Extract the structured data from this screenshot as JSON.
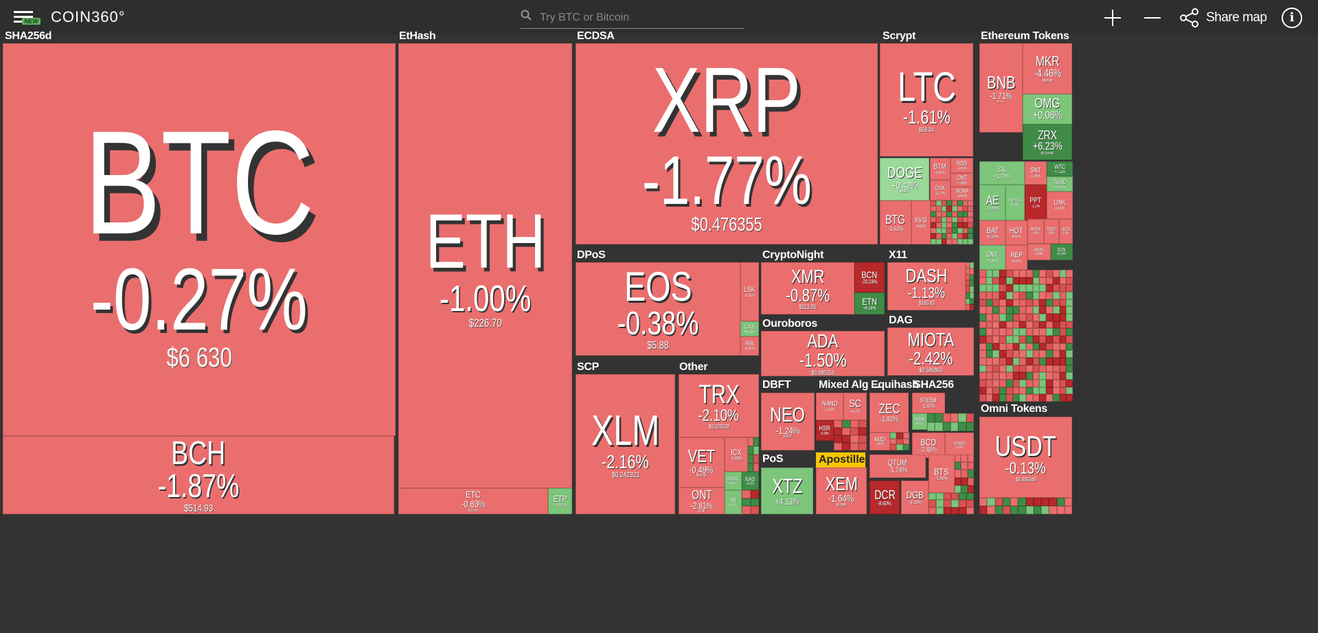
{
  "app": {
    "logo_text": "COIN360°",
    "new_badge": "NEW"
  },
  "search": {
    "placeholder": "Try BTC or Bitcoin"
  },
  "toolbar": {
    "share_label": "Share map",
    "info_glyph": "i"
  },
  "colors": {
    "down": "#ea6e6e",
    "down_dark": "#b8282a",
    "up": "#7cc57a",
    "up_dark": "#3f8c47",
    "neutral_up": "#9ad99a",
    "bg": "#333333",
    "label_highlight": "#f7c600"
  },
  "groups": [
    {
      "label": "SHA256d"
    },
    {
      "label": "EtHash"
    },
    {
      "label": "ECDSA"
    },
    {
      "label": "Scrypt"
    },
    {
      "label": "Ethereum Tokens"
    },
    {
      "label": "DPoS"
    },
    {
      "label": "CryptoNight"
    },
    {
      "label": "X11"
    },
    {
      "label": "Ouroboros"
    },
    {
      "label": "DAG"
    },
    {
      "label": "SCP"
    },
    {
      "label": "Other"
    },
    {
      "label": "DBFT"
    },
    {
      "label": "Mixed Alg ..."
    },
    {
      "label": "Equihash"
    },
    {
      "label": "SHA256"
    },
    {
      "label": "PoS"
    },
    {
      "label": "Apostille"
    },
    {
      "label": "Omni Tokens"
    }
  ],
  "coins": [
    {
      "symbol": "BTC",
      "change": "-0.27%",
      "price": "$6 630"
    },
    {
      "symbol": "BCH",
      "change": "-1.87%",
      "price": "$514.93"
    },
    {
      "symbol": "ETH",
      "change": "-1.00%",
      "price": "$226.70"
    },
    {
      "symbol": "ETC",
      "change": "-0.63%",
      "price": "$10.81"
    },
    {
      "symbol": "ETP",
      "change": "+0.17%",
      "price": ""
    },
    {
      "symbol": "XRP",
      "change": "-1.77%",
      "price": "$0.476355"
    },
    {
      "symbol": "LTC",
      "change": "-1.61%",
      "price": "$58.34"
    },
    {
      "symbol": "DOGE",
      "change": "+0.42%",
      "price": "$0.005"
    },
    {
      "symbol": "BTM",
      "change": "-0.86%",
      "price": ""
    },
    {
      "symbol": "RDD",
      "change": "-2.60%",
      "price": ""
    },
    {
      "symbol": "CMT",
      "change": "-7.38%",
      "price": ""
    },
    {
      "symbol": "CHX",
      "change": "-2.17%",
      "price": ""
    },
    {
      "symbol": "MONA",
      "change": "-1.60%",
      "price": ""
    },
    {
      "symbol": "BTG",
      "change": "-3.63%",
      "price": ""
    },
    {
      "symbol": "XVG",
      "change": "-4.62%",
      "price": ""
    },
    {
      "symbol": "EOS",
      "change": "-0.38%",
      "price": "$5.88"
    },
    {
      "symbol": "LSK",
      "change": "-0.25%",
      "price": ""
    },
    {
      "symbol": "GXS",
      "change": "+4.51%",
      "price": ""
    },
    {
      "symbol": "ARK",
      "change": "-1.30%",
      "price": ""
    },
    {
      "symbol": "XMR",
      "change": "-0.87%",
      "price": "$113.05"
    },
    {
      "symbol": "BCN",
      "change": "-20.24%",
      "price": ""
    },
    {
      "symbol": "ETN",
      "change": "+6.18%",
      "price": ""
    },
    {
      "symbol": "DASH",
      "change": "-1.13%",
      "price": "$180.83"
    },
    {
      "symbol": "ADA",
      "change": "-1.50%",
      "price": "$0.085316"
    },
    {
      "symbol": "MIOTA",
      "change": "-2.42%",
      "price": "$0.586863"
    },
    {
      "symbol": "XLM",
      "change": "-2.16%",
      "price": "$0.242321"
    },
    {
      "symbol": "TRX",
      "change": "-2.10%",
      "price": "$0.025528"
    },
    {
      "symbol": "VET",
      "change": "-0.49%",
      "price": "$0.0169"
    },
    {
      "symbol": "ICX",
      "change": "-0.86%",
      "price": ""
    },
    {
      "symbol": "ONT",
      "change": "-2.81%",
      "price": "$1.98"
    },
    {
      "symbol": "MOAC",
      "change": "+4.0%",
      "price": ""
    },
    {
      "symbol": "NAS",
      "change": "+5.3%",
      "price": ""
    },
    {
      "symbol": "HT",
      "change": "+2.1%",
      "price": ""
    },
    {
      "symbol": "NEO",
      "change": "-1.24%",
      "price": "$18.20"
    },
    {
      "symbol": "NANO",
      "change": "-2.19%",
      "price": ""
    },
    {
      "symbol": "SC",
      "change": "-4.07%",
      "price": ""
    },
    {
      "symbol": "HSR",
      "change": "-8.28%",
      "price": ""
    },
    {
      "symbol": "ZEC",
      "change": "-1.82%",
      "price": ""
    },
    {
      "symbol": "KMD",
      "change": "-1.46%",
      "price": ""
    },
    {
      "symbol": "STEEM",
      "change": "-1.47%",
      "price": ""
    },
    {
      "symbol": "ARDR",
      "change": "+0.6%",
      "price": ""
    },
    {
      "symbol": "BCD",
      "change": "-2.45%",
      "price": ""
    },
    {
      "symbol": "STRAT",
      "change": "-3.26%",
      "price": ""
    },
    {
      "symbol": "XTZ",
      "change": "+4.13%",
      "price": ""
    },
    {
      "symbol": "QTUM",
      "change": "-1.74%",
      "price": ""
    },
    {
      "symbol": "BTS",
      "change": "-1.98%",
      "price": ""
    },
    {
      "symbol": "XEM",
      "change": "-1.64%",
      "price": "$0.0968"
    },
    {
      "symbol": "DCR",
      "change": "-8.60%",
      "price": ""
    },
    {
      "symbol": "DGB",
      "change": "-3.16%",
      "price": ""
    },
    {
      "symbol": "BNB",
      "change": "-1.71%",
      "price": "$10.31"
    },
    {
      "symbol": "MKR",
      "change": "-4.46%",
      "price": "$500.38"
    },
    {
      "symbol": "OMG",
      "change": "+0.06%",
      "price": ""
    },
    {
      "symbol": "ZRX",
      "change": "+6.23%",
      "price": "$0.794400"
    },
    {
      "symbol": "ZIL",
      "change": "+1.79%",
      "price": ""
    },
    {
      "symbol": "SNT",
      "change": "-1.36%",
      "price": ""
    },
    {
      "symbol": "WTC",
      "change": "+7.12%",
      "price": ""
    },
    {
      "symbol": "TUSD",
      "change": "+0.03%",
      "price": ""
    },
    {
      "symbol": "AE",
      "change": "+0.99%",
      "price": ""
    },
    {
      "symbol": "NPXS",
      "change": "+0.16%",
      "price": ""
    },
    {
      "symbol": "PPT",
      "change": "-1.2%",
      "price": ""
    },
    {
      "symbol": "LINK",
      "change": "-1.18%",
      "price": ""
    },
    {
      "symbol": "BAT",
      "change": "-0.16%",
      "price": ""
    },
    {
      "symbol": "HOT",
      "change": "-4.61%",
      "price": ""
    },
    {
      "symbol": "MITH",
      "change": "-1.6%",
      "price": ""
    },
    {
      "symbol": "IOST",
      "change": "-2.3%",
      "price": ""
    },
    {
      "symbol": "KCS",
      "change": "-1.8%",
      "price": ""
    },
    {
      "symbol": "GNT",
      "change": "+2.42%",
      "price": ""
    },
    {
      "symbol": "REP",
      "change": "-0.39%",
      "price": ""
    },
    {
      "symbol": "AION",
      "change": "-1.98%",
      "price": ""
    },
    {
      "symbol": "DCN",
      "change": "+0.33%",
      "price": ""
    },
    {
      "symbol": "USDT",
      "change": "-0.13%",
      "price": "$0.995349"
    }
  ]
}
